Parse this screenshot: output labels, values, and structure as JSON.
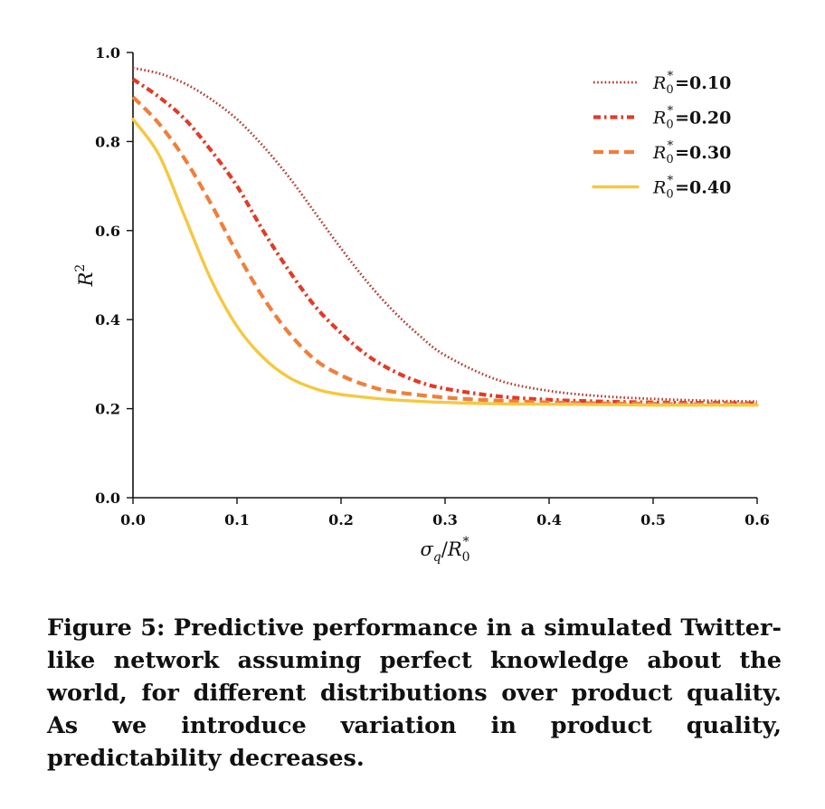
{
  "chart_data": {
    "type": "line",
    "xlabel": "σ_q/R_0^*",
    "ylabel": "R^2",
    "xlim": [
      0.0,
      0.6
    ],
    "ylim": [
      0.0,
      1.0
    ],
    "xticks": [
      "0.0",
      "0.1",
      "0.2",
      "0.3",
      "0.4",
      "0.5",
      "0.6"
    ],
    "yticks": [
      "0.0",
      "0.2",
      "0.4",
      "0.6",
      "0.8",
      "1.0"
    ],
    "grid": false,
    "legend_position": "top-right",
    "series": [
      {
        "name": "R_0^*=0.10",
        "label_prefix": "R",
        "label_sub": "0",
        "label_sup": "*",
        "label_value": "=0.10",
        "color": "#b03a2e",
        "style": "dotted",
        "x": [
          0.0,
          0.025,
          0.05,
          0.075,
          0.1,
          0.125,
          0.15,
          0.175,
          0.2,
          0.225,
          0.25,
          0.275,
          0.3,
          0.35,
          0.4,
          0.45,
          0.5,
          0.55,
          0.6
        ],
        "y": [
          0.965,
          0.953,
          0.93,
          0.895,
          0.85,
          0.79,
          0.72,
          0.64,
          0.56,
          0.485,
          0.42,
          0.365,
          0.32,
          0.265,
          0.24,
          0.228,
          0.222,
          0.218,
          0.216
        ]
      },
      {
        "name": "R_0^*=0.20",
        "label_prefix": "R",
        "label_sub": "0",
        "label_sup": "*",
        "label_value": "=0.20",
        "color": "#e03c28",
        "style": "dashdot",
        "x": [
          0.0,
          0.025,
          0.05,
          0.075,
          0.1,
          0.125,
          0.15,
          0.175,
          0.2,
          0.225,
          0.25,
          0.275,
          0.3,
          0.35,
          0.4,
          0.45,
          0.5,
          0.55,
          0.6
        ],
        "y": [
          0.94,
          0.9,
          0.85,
          0.78,
          0.7,
          0.6,
          0.51,
          0.43,
          0.37,
          0.32,
          0.285,
          0.26,
          0.245,
          0.228,
          0.22,
          0.216,
          0.214,
          0.213,
          0.212
        ]
      },
      {
        "name": "R_0^*=0.30",
        "label_prefix": "R",
        "label_sub": "0",
        "label_sup": "*",
        "label_value": "=0.30",
        "color": "#f07f3c",
        "style": "dashed",
        "x": [
          0.0,
          0.025,
          0.05,
          0.075,
          0.1,
          0.125,
          0.15,
          0.175,
          0.2,
          0.225,
          0.25,
          0.3,
          0.35,
          0.4,
          0.45,
          0.5,
          0.55,
          0.6
        ],
        "y": [
          0.9,
          0.84,
          0.76,
          0.66,
          0.55,
          0.45,
          0.37,
          0.31,
          0.275,
          0.252,
          0.238,
          0.225,
          0.218,
          0.214,
          0.212,
          0.211,
          0.21,
          0.21
        ]
      },
      {
        "name": "R_0^*=0.40",
        "label_prefix": "R",
        "label_sub": "0",
        "label_sup": "*",
        "label_value": "=0.40",
        "color": "#f5c842",
        "style": "solid",
        "x": [
          0.0,
          0.025,
          0.05,
          0.075,
          0.1,
          0.125,
          0.15,
          0.175,
          0.2,
          0.25,
          0.3,
          0.35,
          0.4,
          0.45,
          0.5,
          0.55,
          0.6
        ],
        "y": [
          0.85,
          0.77,
          0.63,
          0.49,
          0.385,
          0.315,
          0.27,
          0.245,
          0.232,
          0.22,
          0.214,
          0.211,
          0.21,
          0.209,
          0.208,
          0.208,
          0.208
        ]
      }
    ]
  },
  "caption": "Figure 5:  Predictive performance in a simulated Twitter-like network assuming perfect knowledge about the world, for different distributions over product quality. As we introduce variation in product quality, predictability decreases."
}
